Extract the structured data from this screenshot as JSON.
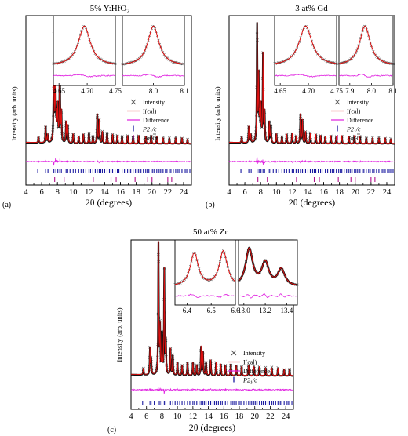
{
  "colors": {
    "observed": "#555555",
    "calculated": "#e01010",
    "difference": "#e020e0",
    "p21c": "#1a1aa0",
    "fm3m": "#b0108a",
    "background_line": "#000000"
  },
  "chart_data": [
    {
      "type": "line",
      "panel": "(a)",
      "title_main": "5% Y:HfO",
      "title_sub": "2",
      "xlabel": "2θ (degrees)",
      "ylabel": "Intensity (arb. units)",
      "xlim": [
        4,
        25
      ],
      "xticks": [
        "4",
        "6",
        "8",
        "10",
        "12",
        "14",
        "16",
        "18",
        "20",
        "22",
        "24"
      ],
      "legend": [
        {
          "name": "Intensity",
          "marker": "×",
          "kind": "observed"
        },
        {
          "name": "I(cal)",
          "kind": "calculated"
        },
        {
          "name": "Difference",
          "kind": "difference"
        },
        {
          "name": "P2",
          "sub": "1",
          "tail": "/c",
          "kind": "p21c"
        },
        {
          "name": "Fm3m",
          "kind": "fm3m"
        }
      ],
      "peaks": [
        [
          5.6,
          0.05
        ],
        [
          6.5,
          0.14
        ],
        [
          6.75,
          0.07
        ],
        [
          7.55,
          1.0
        ],
        [
          7.75,
          0.55
        ],
        [
          7.9,
          0.2
        ],
        [
          8.05,
          0.3
        ],
        [
          8.3,
          0.75
        ],
        [
          8.5,
          0.25
        ],
        [
          9.1,
          0.18
        ],
        [
          9.3,
          0.15
        ],
        [
          10.0,
          0.08
        ],
        [
          10.7,
          0.06
        ],
        [
          11.3,
          0.08
        ],
        [
          12.0,
          0.09
        ],
        [
          12.5,
          0.06
        ],
        [
          13.05,
          0.25
        ],
        [
          13.3,
          0.2
        ],
        [
          13.7,
          0.1
        ],
        [
          14.3,
          0.09
        ],
        [
          15.0,
          0.08
        ],
        [
          15.6,
          0.07
        ],
        [
          16.2,
          0.06
        ],
        [
          16.9,
          0.07
        ],
        [
          17.6,
          0.06
        ],
        [
          18.3,
          0.07
        ],
        [
          19.2,
          0.06
        ],
        [
          19.9,
          0.07
        ],
        [
          20.6,
          0.06
        ],
        [
          21.4,
          0.05
        ],
        [
          22.2,
          0.05
        ],
        [
          23.0,
          0.05
        ],
        [
          23.8,
          0.05
        ],
        [
          24.5,
          0.04
        ]
      ],
      "p21c_ticks": [
        5.5,
        6.5,
        6.8,
        7.55,
        7.8,
        8.05,
        8.3,
        8.5,
        9.1,
        9.3,
        9.6,
        10.0,
        10.3,
        10.7,
        11.0,
        11.3,
        11.6,
        12.0,
        12.2,
        12.5,
        12.8,
        13.05,
        13.3,
        13.5,
        13.7,
        14.0,
        14.3,
        14.6,
        14.8,
        15.0,
        15.3,
        15.6,
        15.8,
        16.2,
        16.5,
        16.9,
        17.1,
        17.3,
        17.6,
        17.9,
        18.1,
        18.3,
        18.6,
        18.9,
        19.2,
        19.4,
        19.6,
        19.9,
        20.1,
        20.3,
        20.6,
        20.9,
        21.1,
        21.4,
        21.7,
        21.9,
        22.2,
        22.4,
        22.7,
        23.0,
        23.3,
        23.5,
        23.8,
        24.1,
        24.3,
        24.5,
        24.8
      ],
      "fm3m_ticks": [
        7.65,
        8.85,
        12.55,
        14.8,
        15.45,
        17.85,
        19.45,
        20.0,
        22.0,
        22.5
      ],
      "insets": [
        {
          "xlim": [
            4.64,
            4.75
          ],
          "xticks": [
            "4.65",
            "4.70",
            "4.75"
          ],
          "center": 4.695,
          "width": 0.013
        },
        {
          "xlim": [
            7.9,
            8.1
          ],
          "xticks": [
            "8.0",
            "8.1"
          ],
          "center": 8.0,
          "width": 0.022
        }
      ]
    },
    {
      "type": "line",
      "panel": "(b)",
      "title_main": "3 at% Gd",
      "title_sub": "",
      "xlabel": "2θ (degrees)",
      "ylabel": "Intensity (arb. units)",
      "xlim": [
        4,
        25
      ],
      "xticks": [
        "4",
        "6",
        "8",
        "10",
        "12",
        "14",
        "16",
        "18",
        "20",
        "22",
        "24"
      ],
      "legend": [
        {
          "name": "Intensity",
          "marker": "×",
          "kind": "observed"
        },
        {
          "name": "I(cal)",
          "kind": "calculated"
        },
        {
          "name": "Difference",
          "kind": "difference"
        },
        {
          "name": "P2",
          "sub": "1",
          "tail": "/c",
          "kind": "p21c"
        },
        {
          "name": "Fm3m",
          "kind": "fm3m"
        }
      ],
      "peaks": [
        [
          5.6,
          0.05
        ],
        [
          6.5,
          0.14
        ],
        [
          6.75,
          0.07
        ],
        [
          7.55,
          1.0
        ],
        [
          7.75,
          0.55
        ],
        [
          7.9,
          0.2
        ],
        [
          8.05,
          0.3
        ],
        [
          8.3,
          0.75
        ],
        [
          8.5,
          0.25
        ],
        [
          9.1,
          0.18
        ],
        [
          9.3,
          0.15
        ],
        [
          10.0,
          0.08
        ],
        [
          10.7,
          0.06
        ],
        [
          11.3,
          0.08
        ],
        [
          12.0,
          0.09
        ],
        [
          12.5,
          0.06
        ],
        [
          13.05,
          0.25
        ],
        [
          13.3,
          0.2
        ],
        [
          13.7,
          0.1
        ],
        [
          14.3,
          0.09
        ],
        [
          15.0,
          0.08
        ],
        [
          15.6,
          0.07
        ],
        [
          16.2,
          0.06
        ],
        [
          16.9,
          0.07
        ],
        [
          17.6,
          0.06
        ],
        [
          18.3,
          0.07
        ],
        [
          19.2,
          0.06
        ],
        [
          19.9,
          0.07
        ],
        [
          20.6,
          0.06
        ],
        [
          21.4,
          0.05
        ],
        [
          22.2,
          0.05
        ],
        [
          23.0,
          0.05
        ],
        [
          23.8,
          0.05
        ],
        [
          24.5,
          0.04
        ]
      ],
      "p21c_ticks": [
        5.5,
        6.5,
        6.8,
        7.55,
        7.8,
        8.05,
        8.3,
        8.5,
        9.1,
        9.3,
        9.6,
        10.0,
        10.3,
        10.7,
        11.0,
        11.3,
        11.6,
        12.0,
        12.2,
        12.5,
        12.8,
        13.05,
        13.3,
        13.5,
        13.7,
        14.0,
        14.3,
        14.6,
        14.8,
        15.0,
        15.3,
        15.6,
        15.8,
        16.2,
        16.5,
        16.9,
        17.1,
        17.3,
        17.6,
        17.9,
        18.1,
        18.3,
        18.6,
        18.9,
        19.2,
        19.4,
        19.6,
        19.9,
        20.1,
        20.3,
        20.6,
        20.9,
        21.1,
        21.4,
        21.7,
        21.9,
        22.2,
        22.4,
        22.7,
        23.0,
        23.3,
        23.5,
        23.8,
        24.1,
        24.3,
        24.5,
        24.8
      ],
      "fm3m_ticks": [
        7.65,
        8.85,
        12.55,
        14.8,
        15.45,
        17.85,
        19.45,
        20.0,
        22.0,
        22.5
      ],
      "insets": [
        {
          "xlim": [
            4.64,
            4.75
          ],
          "xticks": [
            "4.65",
            "4.70",
            "4.75"
          ],
          "center": 4.695,
          "width": 0.014
        },
        {
          "xlim": [
            7.85,
            8.1
          ],
          "xticks": [
            "7.9",
            "8.0",
            "8.1"
          ],
          "center": 7.97,
          "width": 0.03
        }
      ]
    },
    {
      "type": "line",
      "panel": "(c)",
      "title_main": "50 at% Zr",
      "title_sub": "",
      "xlabel": "2θ (degrees)",
      "ylabel": "Intensity (arb. units)",
      "xlim": [
        4,
        25
      ],
      "xticks": [
        "4",
        "6",
        "8",
        "10",
        "12",
        "14",
        "16",
        "18",
        "20",
        "22",
        "24"
      ],
      "legend": [
        {
          "name": "Intensity",
          "marker": "×",
          "kind": "observed"
        },
        {
          "name": "I(cal)",
          "kind": "calculated"
        },
        {
          "name": "Difference",
          "kind": "difference"
        },
        {
          "name": "P2",
          "sub": "1",
          "tail": "/c",
          "kind": "p21c"
        }
      ],
      "peaks": [
        [
          5.6,
          0.05
        ],
        [
          6.45,
          0.2
        ],
        [
          6.6,
          0.12
        ],
        [
          7.55,
          1.0
        ],
        [
          7.75,
          0.35
        ],
        [
          8.0,
          0.3
        ],
        [
          8.3,
          0.8
        ],
        [
          8.5,
          0.25
        ],
        [
          9.1,
          0.2
        ],
        [
          9.4,
          0.15
        ],
        [
          10.0,
          0.1
        ],
        [
          10.6,
          0.08
        ],
        [
          11.3,
          0.1
        ],
        [
          12.0,
          0.1
        ],
        [
          12.5,
          0.08
        ],
        [
          13.05,
          0.22
        ],
        [
          13.3,
          0.18
        ],
        [
          13.7,
          0.1
        ],
        [
          14.3,
          0.12
        ],
        [
          15.0,
          0.1
        ],
        [
          15.6,
          0.09
        ],
        [
          16.2,
          0.08
        ],
        [
          16.9,
          0.09
        ],
        [
          17.6,
          0.08
        ],
        [
          18.3,
          0.07
        ],
        [
          19.2,
          0.08
        ],
        [
          19.9,
          0.07
        ],
        [
          20.6,
          0.07
        ],
        [
          21.4,
          0.06
        ],
        [
          22.2,
          0.06
        ],
        [
          23.0,
          0.06
        ],
        [
          23.8,
          0.05
        ],
        [
          24.5,
          0.05
        ]
      ],
      "p21c_ticks": [
        5.5,
        6.45,
        6.6,
        7.0,
        7.55,
        7.75,
        8.0,
        8.3,
        8.5,
        9.1,
        9.4,
        9.7,
        10.0,
        10.3,
        10.6,
        10.9,
        11.3,
        11.6,
        12.0,
        12.2,
        12.5,
        12.8,
        13.05,
        13.3,
        13.5,
        13.7,
        14.0,
        14.3,
        14.6,
        14.8,
        15.0,
        15.3,
        15.6,
        15.8,
        16.2,
        16.5,
        16.9,
        17.1,
        17.3,
        17.6,
        17.9,
        18.1,
        18.3,
        18.6,
        18.9,
        19.2,
        19.4,
        19.6,
        19.9,
        20.1,
        20.3,
        20.6,
        20.9,
        21.1,
        21.4,
        21.7,
        21.9,
        22.2,
        22.4,
        22.7,
        23.0,
        23.3,
        23.5,
        23.8,
        24.1,
        24.3,
        24.5,
        24.8
      ],
      "fm3m_ticks": [],
      "insets": [
        {
          "xlim": [
            6.35,
            6.6
          ],
          "xticks": [
            "6.4",
            "6.5",
            "6.6"
          ],
          "center": 6.43,
          "center2": 6.55,
          "width": 0.02
        },
        {
          "xlim": [
            12.95,
            13.5
          ],
          "xticks": [
            "13.0",
            "13.2",
            "13.4"
          ],
          "center": 13.05,
          "center2": 13.2,
          "center3": 13.35,
          "width": 0.04
        }
      ]
    }
  ]
}
